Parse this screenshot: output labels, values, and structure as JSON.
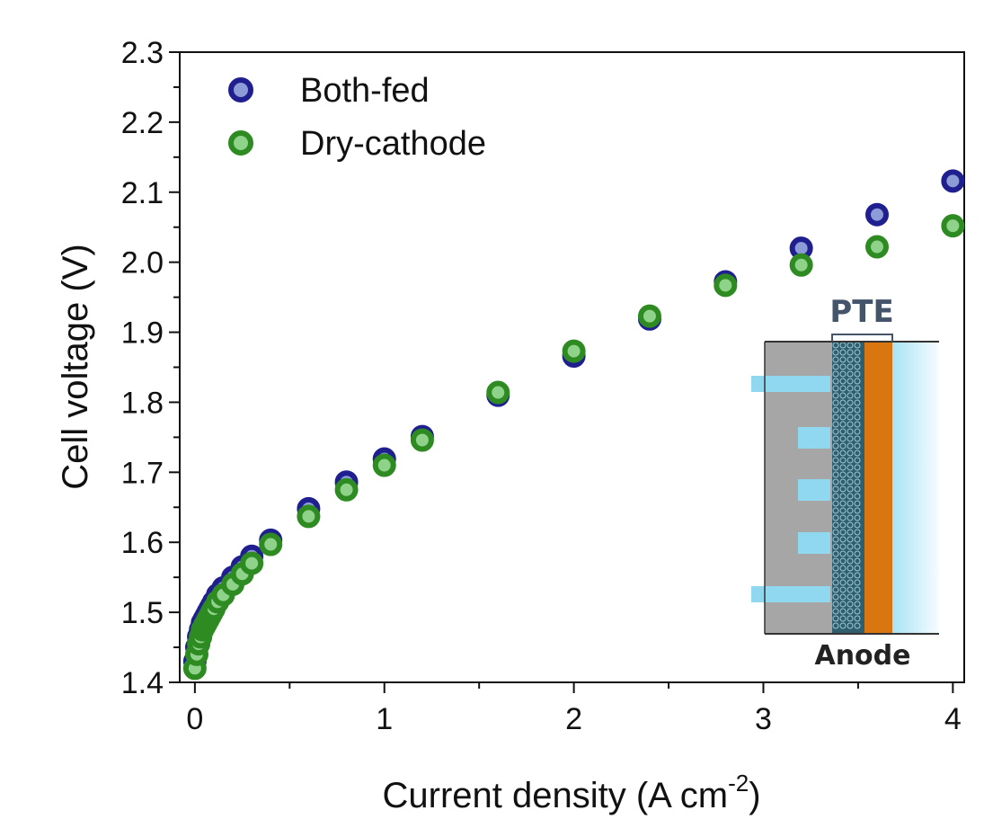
{
  "chart_data": {
    "type": "scatter",
    "xlabel_main": "Current density (A cm",
    "xlabel_sup": "-2",
    "xlabel_end": ")",
    "ylabel": "Cell voltage (V)",
    "xlim": [
      -0.08,
      4.06
    ],
    "ylim": [
      1.4,
      2.3
    ],
    "xticks": [
      0,
      1,
      2,
      3,
      4
    ],
    "xtick_labels": [
      "0",
      "1",
      "2",
      "3",
      "4"
    ],
    "yticks": [
      1.4,
      1.5,
      1.6,
      1.7,
      1.8,
      1.9,
      2.0,
      2.1,
      2.2,
      2.3
    ],
    "ytick_labels": [
      "1.4",
      "1.5",
      "1.6",
      "1.7",
      "1.8",
      "1.9",
      "2.0",
      "2.1",
      "2.2",
      "2.3"
    ],
    "legend_placement": "top-left",
    "series": [
      {
        "name": "Both-fed",
        "color": "#1f1f8f",
        "x": [
          0.0,
          0.01,
          0.02,
          0.03,
          0.04,
          0.05,
          0.06,
          0.07,
          0.08,
          0.09,
          0.1,
          0.12,
          0.15,
          0.2,
          0.25,
          0.3,
          0.4,
          0.6,
          0.8,
          1.0,
          1.2,
          1.6,
          2.0,
          2.4,
          2.8,
          3.2,
          3.6,
          4.0
        ],
        "y": [
          1.43,
          1.45,
          1.465,
          1.475,
          1.485,
          1.49,
          1.495,
          1.5,
          1.505,
          1.51,
          1.515,
          1.525,
          1.535,
          1.55,
          1.565,
          1.58,
          1.603,
          1.648,
          1.686,
          1.719,
          1.751,
          1.81,
          1.866,
          1.919,
          1.972,
          2.02,
          2.068,
          2.116
        ]
      },
      {
        "name": "Dry-cathode",
        "color": "#2e8b22",
        "x": [
          0.0,
          0.01,
          0.02,
          0.03,
          0.04,
          0.05,
          0.06,
          0.07,
          0.08,
          0.09,
          0.1,
          0.12,
          0.15,
          0.2,
          0.25,
          0.3,
          0.4,
          0.6,
          0.8,
          1.0,
          1.2,
          1.6,
          2.0,
          2.4,
          2.8,
          3.2,
          3.6,
          4.0
        ],
        "y": [
          1.42,
          1.44,
          1.455,
          1.465,
          1.475,
          1.48,
          1.485,
          1.49,
          1.495,
          1.5,
          1.505,
          1.515,
          1.525,
          1.54,
          1.555,
          1.57,
          1.597,
          1.637,
          1.675,
          1.71,
          1.746,
          1.814,
          1.873,
          1.923,
          1.967,
          1.996,
          2.022,
          2.052
        ]
      }
    ]
  },
  "inset": {
    "top_label": "PTE",
    "bottom_label": "Anode",
    "colors": {
      "plate": "#a6a6a6",
      "channel": "#8fd8ef",
      "mesh": "#2f5f6f",
      "catalyst": "#d9760f",
      "membrane_light": "#cdeefa"
    }
  }
}
